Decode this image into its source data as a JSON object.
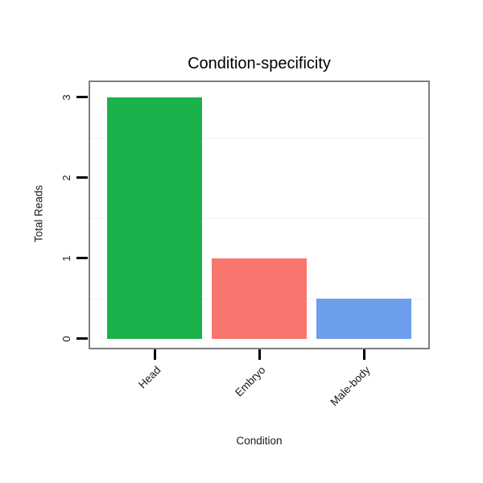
{
  "chart_data": {
    "type": "bar",
    "title": "Condition-specificity",
    "xlabel": "Condition",
    "ylabel": "Total Reads",
    "categories": [
      "Head",
      "Embryo",
      "Male-body"
    ],
    "values": [
      3,
      1,
      0.5
    ],
    "bar_colors": [
      "#1cb24b",
      "#f8766d",
      "#6d9eeb"
    ],
    "yticks": [
      0,
      1,
      2,
      3
    ],
    "ylim": [
      0,
      3.15
    ],
    "gridlines_y": [
      0.5,
      1.5,
      2.5
    ],
    "legend": "none",
    "frame_color": "#7f7f7f",
    "tick_color": "#000000"
  }
}
